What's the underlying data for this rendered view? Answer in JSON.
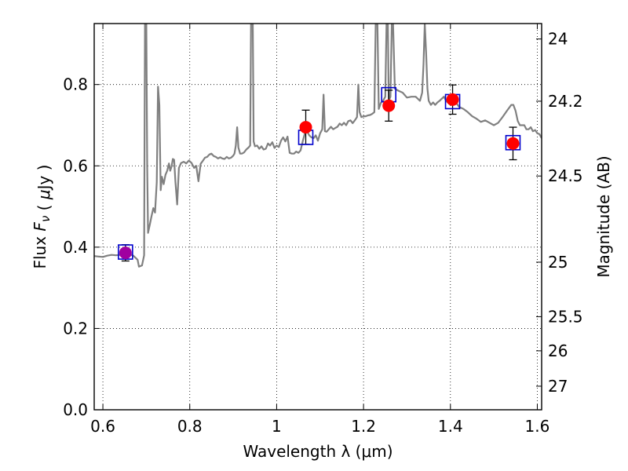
{
  "chart_data": {
    "type": "line",
    "xlabel": "Wavelength  λ (μm)",
    "ylabel": "Flux  F_ν  ( μJy )",
    "y2label": "Magnitude (AB)",
    "xlim": [
      0.58,
      1.61
    ],
    "ylim": [
      0.0,
      0.95
    ],
    "grid": true,
    "x_ticks": [
      0.6,
      0.8,
      1.0,
      1.2,
      1.4,
      1.6
    ],
    "x_tick_labels": [
      "0.6",
      "0.8",
      "1",
      "1.2",
      "1.4",
      "1.6"
    ],
    "y_ticks": [
      0.0,
      0.2,
      0.4,
      0.6,
      0.8
    ],
    "y_tick_labels": [
      "0.0",
      "0.2",
      "0.4",
      "0.6",
      "0.8"
    ],
    "y2_ticks": [
      {
        "flux": 0.912,
        "label": "24"
      },
      {
        "flux": 0.759,
        "label": "24.2"
      },
      {
        "flux": 0.575,
        "label": "24.5"
      },
      {
        "flux": 0.363,
        "label": "25"
      },
      {
        "flux": 0.229,
        "label": "25.5"
      },
      {
        "flux": 0.145,
        "label": "26"
      },
      {
        "flux": 0.058,
        "label": "27"
      }
    ],
    "colors": {
      "spectrum": "#808080",
      "observed": "#ff0000",
      "model": "#0000cc",
      "overlap": "#a000a0"
    },
    "series": [
      {
        "role": "model_spectrum",
        "points": [
          [
            0.58,
            0.378
          ],
          [
            0.59,
            0.377
          ],
          [
            0.6,
            0.376
          ],
          [
            0.61,
            0.379
          ],
          [
            0.62,
            0.381
          ],
          [
            0.63,
            0.38
          ],
          [
            0.64,
            0.381
          ],
          [
            0.65,
            0.38
          ],
          [
            0.66,
            0.383
          ],
          [
            0.67,
            0.379
          ],
          [
            0.675,
            0.374
          ],
          [
            0.68,
            0.369
          ],
          [
            0.683,
            0.352
          ],
          [
            0.69,
            0.355
          ],
          [
            0.695,
            0.38
          ],
          [
            0.697,
            0.95
          ],
          [
            0.7,
            0.95
          ],
          [
            0.702,
            0.6
          ],
          [
            0.704,
            0.435
          ],
          [
            0.708,
            0.455
          ],
          [
            0.712,
            0.476
          ],
          [
            0.716,
            0.496
          ],
          [
            0.72,
            0.485
          ],
          [
            0.724,
            0.56
          ],
          [
            0.727,
            0.795
          ],
          [
            0.73,
            0.75
          ],
          [
            0.733,
            0.54
          ],
          [
            0.736,
            0.573
          ],
          [
            0.74,
            0.555
          ],
          [
            0.744,
            0.578
          ],
          [
            0.748,
            0.588
          ],
          [
            0.752,
            0.606
          ],
          [
            0.755,
            0.588
          ],
          [
            0.758,
            0.598
          ],
          [
            0.761,
            0.617
          ],
          [
            0.764,
            0.615
          ],
          [
            0.767,
            0.56
          ],
          [
            0.771,
            0.505
          ],
          [
            0.775,
            0.595
          ],
          [
            0.78,
            0.607
          ],
          [
            0.786,
            0.61
          ],
          [
            0.792,
            0.606
          ],
          [
            0.798,
            0.613
          ],
          [
            0.804,
            0.607
          ],
          [
            0.81,
            0.595
          ],
          [
            0.815,
            0.6
          ],
          [
            0.82,
            0.562
          ],
          [
            0.825,
            0.605
          ],
          [
            0.83,
            0.612
          ],
          [
            0.835,
            0.62
          ],
          [
            0.84,
            0.622
          ],
          [
            0.845,
            0.628
          ],
          [
            0.85,
            0.63
          ],
          [
            0.855,
            0.624
          ],
          [
            0.86,
            0.622
          ],
          [
            0.865,
            0.618
          ],
          [
            0.87,
            0.621
          ],
          [
            0.875,
            0.618
          ],
          [
            0.88,
            0.617
          ],
          [
            0.885,
            0.622
          ],
          [
            0.89,
            0.618
          ],
          [
            0.895,
            0.62
          ],
          [
            0.9,
            0.625
          ],
          [
            0.903,
            0.63
          ],
          [
            0.906,
            0.65
          ],
          [
            0.909,
            0.695
          ],
          [
            0.912,
            0.645
          ],
          [
            0.916,
            0.63
          ],
          [
            0.92,
            0.63
          ],
          [
            0.925,
            0.633
          ],
          [
            0.93,
            0.64
          ],
          [
            0.935,
            0.645
          ],
          [
            0.939,
            0.65
          ],
          [
            0.941,
            0.95
          ],
          [
            0.945,
            0.95
          ],
          [
            0.947,
            0.66
          ],
          [
            0.95,
            0.648
          ],
          [
            0.955,
            0.65
          ],
          [
            0.96,
            0.642
          ],
          [
            0.965,
            0.648
          ],
          [
            0.97,
            0.64
          ],
          [
            0.975,
            0.642
          ],
          [
            0.98,
            0.655
          ],
          [
            0.985,
            0.65
          ],
          [
            0.99,
            0.658
          ],
          [
            0.995,
            0.644
          ],
          [
            1.0,
            0.65
          ],
          [
            1.005,
            0.646
          ],
          [
            1.01,
            0.662
          ],
          [
            1.015,
            0.67
          ],
          [
            1.02,
            0.66
          ],
          [
            1.025,
            0.672
          ],
          [
            1.03,
            0.632
          ],
          [
            1.035,
            0.63
          ],
          [
            1.04,
            0.63
          ],
          [
            1.045,
            0.635
          ],
          [
            1.05,
            0.632
          ],
          [
            1.055,
            0.638
          ],
          [
            1.06,
            0.66
          ],
          [
            1.065,
            0.68
          ],
          [
            1.07,
            0.685
          ],
          [
            1.075,
            0.675
          ],
          [
            1.08,
            0.67
          ],
          [
            1.085,
            0.668
          ],
          [
            1.09,
            0.675
          ],
          [
            1.095,
            0.662
          ],
          [
            1.1,
            0.68
          ],
          [
            1.105,
            0.69
          ],
          [
            1.108,
            0.775
          ],
          [
            1.111,
            0.685
          ],
          [
            1.115,
            0.684
          ],
          [
            1.12,
            0.69
          ],
          [
            1.125,
            0.696
          ],
          [
            1.13,
            0.69
          ],
          [
            1.135,
            0.693
          ],
          [
            1.14,
            0.696
          ],
          [
            1.145,
            0.704
          ],
          [
            1.15,
            0.7
          ],
          [
            1.155,
            0.706
          ],
          [
            1.16,
            0.7
          ],
          [
            1.165,
            0.71
          ],
          [
            1.17,
            0.712
          ],
          [
            1.175,
            0.705
          ],
          [
            1.18,
            0.712
          ],
          [
            1.185,
            0.72
          ],
          [
            1.188,
            0.8
          ],
          [
            1.191,
            0.732
          ],
          [
            1.195,
            0.72
          ],
          [
            1.2,
            0.722
          ],
          [
            1.205,
            0.722
          ],
          [
            1.21,
            0.724
          ],
          [
            1.215,
            0.725
          ],
          [
            1.22,
            0.728
          ],
          [
            1.225,
            0.732
          ],
          [
            1.228,
            0.95
          ],
          [
            1.232,
            0.95
          ],
          [
            1.235,
            0.74
          ],
          [
            1.24,
            0.755
          ],
          [
            1.245,
            0.76
          ],
          [
            1.25,
            0.77
          ],
          [
            1.253,
            0.95
          ],
          [
            1.256,
            0.95
          ],
          [
            1.258,
            0.76
          ],
          [
            1.262,
            0.77
          ],
          [
            1.265,
            0.95
          ],
          [
            1.268,
            0.95
          ],
          [
            1.272,
            0.79
          ],
          [
            1.28,
            0.785
          ],
          [
            1.29,
            0.78
          ],
          [
            1.3,
            0.768
          ],
          [
            1.31,
            0.77
          ],
          [
            1.32,
            0.77
          ],
          [
            1.33,
            0.76
          ],
          [
            1.335,
            0.78
          ],
          [
            1.338,
            0.85
          ],
          [
            1.341,
            0.95
          ],
          [
            1.344,
            0.88
          ],
          [
            1.347,
            0.79
          ],
          [
            1.35,
            0.76
          ],
          [
            1.355,
            0.75
          ],
          [
            1.36,
            0.756
          ],
          [
            1.365,
            0.75
          ],
          [
            1.37,
            0.756
          ],
          [
            1.375,
            0.76
          ],
          [
            1.38,
            0.765
          ],
          [
            1.385,
            0.77
          ],
          [
            1.39,
            0.76
          ],
          [
            1.395,
            0.755
          ],
          [
            1.4,
            0.765
          ],
          [
            1.41,
            0.76
          ],
          [
            1.42,
            0.745
          ],
          [
            1.43,
            0.74
          ],
          [
            1.44,
            0.732
          ],
          [
            1.45,
            0.722
          ],
          [
            1.46,
            0.716
          ],
          [
            1.47,
            0.708
          ],
          [
            1.48,
            0.712
          ],
          [
            1.49,
            0.706
          ],
          [
            1.5,
            0.7
          ],
          [
            1.51,
            0.706
          ],
          [
            1.52,
            0.72
          ],
          [
            1.53,
            0.735
          ],
          [
            1.54,
            0.75
          ],
          [
            1.545,
            0.75
          ],
          [
            1.55,
            0.735
          ],
          [
            1.555,
            0.71
          ],
          [
            1.56,
            0.7
          ],
          [
            1.57,
            0.7
          ],
          [
            1.575,
            0.69
          ],
          [
            1.58,
            0.69
          ],
          [
            1.585,
            0.695
          ],
          [
            1.59,
            0.685
          ],
          [
            1.595,
            0.688
          ],
          [
            1.6,
            0.68
          ],
          [
            1.605,
            0.678
          ],
          [
            1.61,
            0.668
          ]
        ]
      },
      {
        "role": "model_photometry",
        "marker": "open-square",
        "x": [
          0.652,
          1.067,
          1.258,
          1.405,
          1.544
        ],
        "y": [
          0.388,
          0.67,
          0.775,
          0.758,
          0.657
        ]
      },
      {
        "role": "observed_photometry",
        "marker": "filled-circle",
        "x": [
          0.652,
          1.067,
          1.258,
          1.405,
          1.544
        ],
        "y": [
          0.386,
          0.695,
          0.748,
          0.763,
          0.655
        ],
        "err": [
          0.02,
          0.042,
          0.038,
          0.036,
          0.04
        ]
      }
    ]
  }
}
